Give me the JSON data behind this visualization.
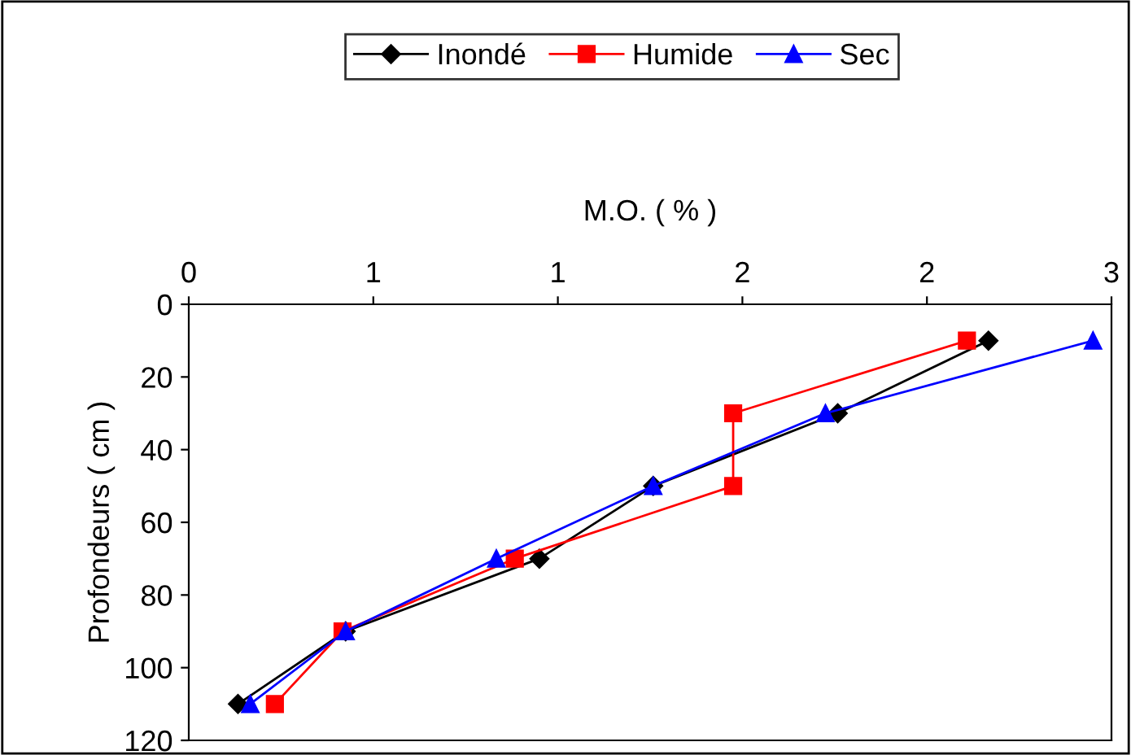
{
  "chart_data": {
    "type": "line",
    "xlabel": "M.O. ( % )",
    "ylabel": "Profondeurs ( cm )",
    "xlim": [
      0,
      3
    ],
    "xticks": [
      0,
      {
        "value": 0.6,
        "label": "1"
      },
      {
        "value": 1.2,
        "label": "1"
      },
      {
        "value": 1.8,
        "label": "2"
      },
      {
        "value": 2.4,
        "label": "2"
      },
      3
    ],
    "ylim": [
      120,
      0
    ],
    "yticks": [
      0,
      20,
      40,
      60,
      80,
      100,
      120
    ],
    "grid": false,
    "legend": "top",
    "series": [
      {
        "name": "Inondé",
        "color": "#000000",
        "marker": "diamond",
        "x": [
          2.6,
          2.11,
          1.51,
          1.14,
          0.51,
          0.16
        ],
        "values": [
          10,
          30,
          50,
          70,
          90,
          110
        ]
      },
      {
        "name": "Humide",
        "color": "#ff0000",
        "marker": "square",
        "x": [
          2.53,
          1.77,
          1.77,
          1.06,
          0.5,
          0.28
        ],
        "values": [
          10,
          30,
          50,
          70,
          90,
          110
        ]
      },
      {
        "name": "Sec",
        "color": "#0000ff",
        "marker": "triangle",
        "x": [
          2.94,
          2.07,
          1.51,
          1.0,
          0.51,
          0.2
        ],
        "values": [
          10,
          30,
          50,
          70,
          90,
          110
        ]
      }
    ]
  }
}
